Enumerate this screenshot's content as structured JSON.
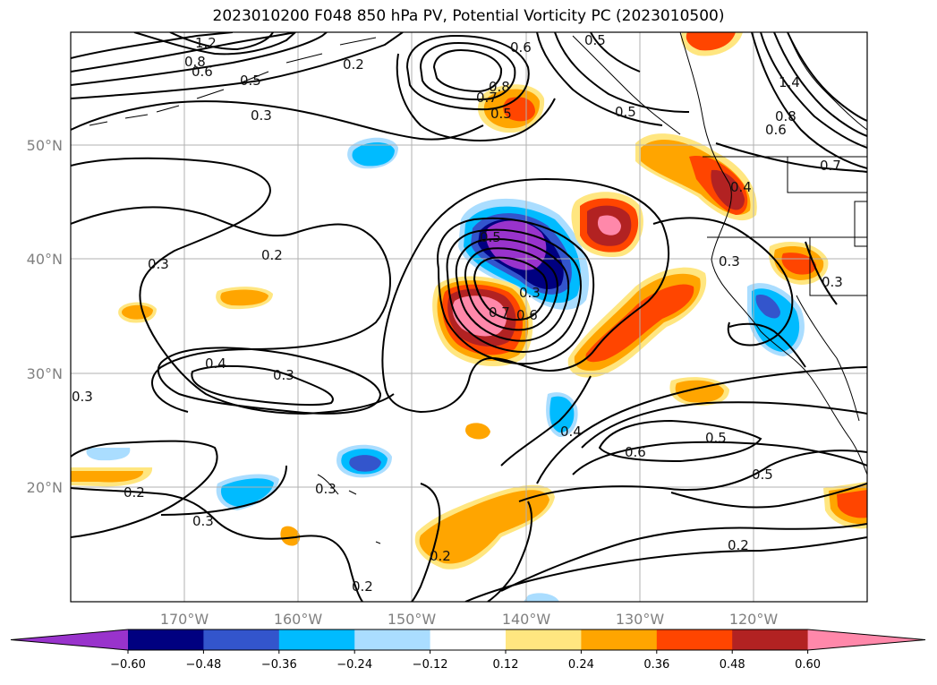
{
  "title": "2023010200 F048 850 hPa PV, Potential Vorticity PC (2023010500)",
  "latitude_labels": [
    "50°N",
    "40°N",
    "30°N",
    "20°N"
  ],
  "longitude_labels": [
    "170°W",
    "160°W",
    "150°W",
    "140°W",
    "130°W",
    "120°W"
  ],
  "colorbar": {
    "ticks": [
      "−0.60",
      "−0.48",
      "−0.36",
      "−0.24",
      "−0.12",
      "0.12",
      "0.24",
      "0.36",
      "0.48",
      "0.60"
    ],
    "colors": [
      "#9933cc",
      "#000080",
      "#3355cc",
      "#00bbff",
      "#aaddff",
      "#ffffff",
      "#ffe680",
      "#ffa500",
      "#ff4500",
      "#b22222",
      "#ff88aa"
    ]
  },
  "contour_labels": [
    "1.2",
    "0.8",
    "0.6",
    "0.5",
    "0.2",
    "0.6",
    "0.8",
    "0.7",
    "0.5",
    "0.5",
    "0.5",
    "0.3",
    "0.3",
    "0.2",
    "0.3",
    "0.4",
    "0.3",
    "0.5",
    "0.7",
    "0.6",
    "0.3",
    "0.3",
    "0.4",
    "0.6",
    "0.5",
    "0.5",
    "0.3",
    "0.2",
    "0.3",
    "0.2",
    "0.2",
    "0.2",
    "0.3",
    "1.4",
    "0.8",
    "0.6",
    "0.7",
    "0.4"
  ]
}
